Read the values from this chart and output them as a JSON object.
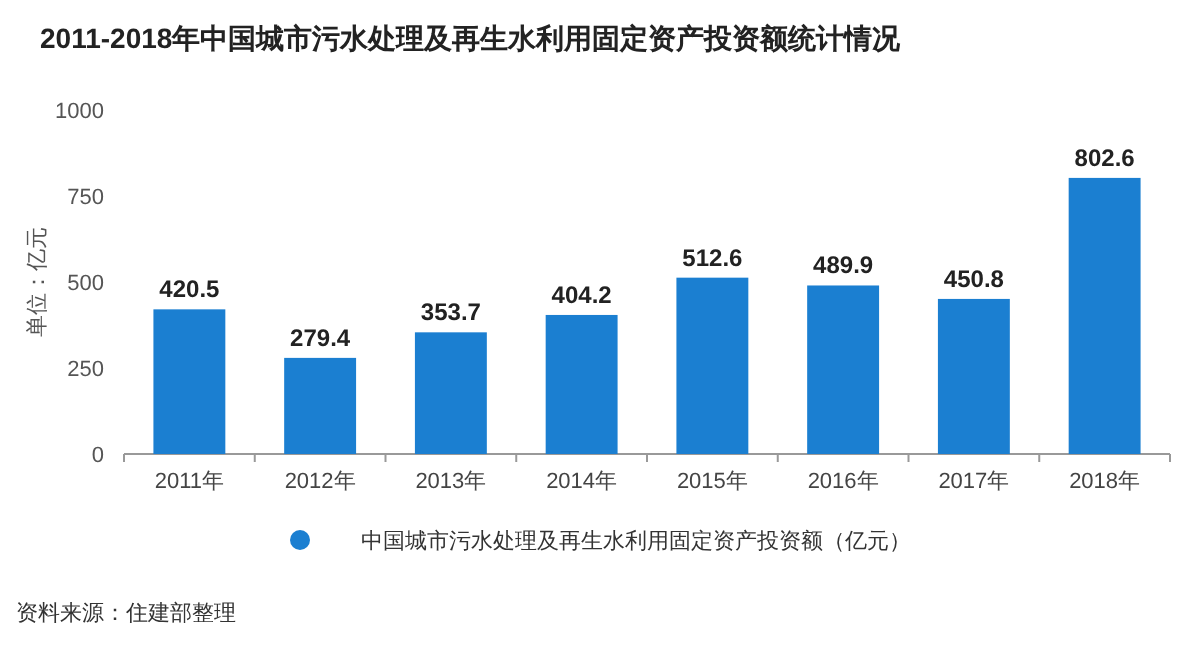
{
  "chart_data": {
    "type": "bar",
    "title": "2011-2018年中国城市污水处理及再生水利用固定资产投资额统计情况",
    "ylabel": "单位：亿元",
    "categories": [
      "2011年",
      "2012年",
      "2013年",
      "2014年",
      "2015年",
      "2016年",
      "2017年",
      "2018年"
    ],
    "series": [
      {
        "name": "中国城市污水处理及再生水利用固定资产投资额（亿元）",
        "color": "#1b7fd1",
        "values": [
          420.5,
          279.4,
          353.7,
          404.2,
          512.6,
          489.9,
          450.8,
          802.6
        ]
      }
    ],
    "ylim": [
      0,
      1000
    ],
    "yticks": [
      0,
      250,
      500,
      750,
      1000
    ],
    "data_labels": true,
    "legend": "bottom",
    "annotations": [
      "资料来源：住建部整理"
    ]
  }
}
